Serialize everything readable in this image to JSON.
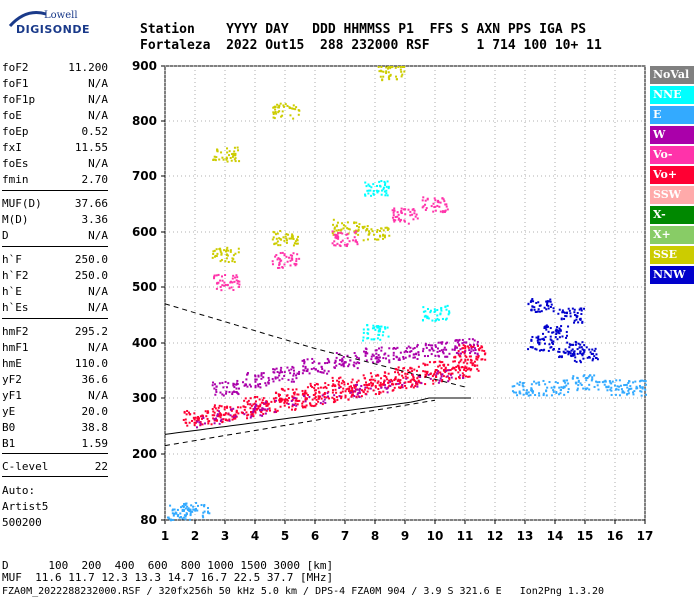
{
  "logo": {
    "top": "Lowell",
    "bottom": "DIGISONDE"
  },
  "header": {
    "line1": "Station    YYYY DAY   DDD HHMMSS P1  FFS S AXN PPS IGA PS",
    "line2": "Fortaleza  2022 Out15  288 232000 RSF      1 714 100 10+ 11"
  },
  "params": [
    {
      "k": "foF2",
      "v": "11.200"
    },
    {
      "k": "foF1",
      "v": "N/A"
    },
    {
      "k": "foF1p",
      "v": "N/A"
    },
    {
      "k": "foE",
      "v": "N/A"
    },
    {
      "k": "foEp",
      "v": "0.52"
    },
    {
      "k": "fxI",
      "v": "11.55"
    },
    {
      "k": "foEs",
      "v": "N/A"
    },
    {
      "k": "fmin",
      "v": "2.70"
    },
    {
      "k": "MUF(D)",
      "v": "37.66"
    },
    {
      "k": "M(D)",
      "v": "3.36"
    },
    {
      "k": "D",
      "v": "N/A"
    },
    {
      "k": "h`F",
      "v": "250.0"
    },
    {
      "k": "h`F2",
      "v": "250.0"
    },
    {
      "k": "h`E",
      "v": "N/A"
    },
    {
      "k": "h`Es",
      "v": "N/A"
    },
    {
      "k": "hmF2",
      "v": "295.2"
    },
    {
      "k": "hmF1",
      "v": "N/A"
    },
    {
      "k": "hmE",
      "v": "110.0"
    },
    {
      "k": "yF2",
      "v": "36.6"
    },
    {
      "k": "yF1",
      "v": "N/A"
    },
    {
      "k": "yE",
      "v": "20.0"
    },
    {
      "k": "B0",
      "v": "38.8"
    },
    {
      "k": "B1",
      "v": "1.59"
    },
    {
      "k": "C-level",
      "v": "22"
    }
  ],
  "auto": {
    "l1": "Auto:",
    "l2": "Artist5",
    "l3": "500200"
  },
  "legend": [
    {
      "label": "NoVal",
      "color": "#808080"
    },
    {
      "label": "NNE",
      "color": "#00ffff"
    },
    {
      "label": "E",
      "color": "#33aaff"
    },
    {
      "label": "W",
      "color": "#aa00aa"
    },
    {
      "label": "Vo-",
      "color": "#ff33aa"
    },
    {
      "label": "Vo+",
      "color": "#ff0033"
    },
    {
      "label": "SSW",
      "color": "#ffaaaa"
    },
    {
      "label": "X-",
      "color": "#008800"
    },
    {
      "label": "X+",
      "color": "#88cc66"
    },
    {
      "label": "SSE",
      "color": "#cccc00"
    },
    {
      "label": "NNW",
      "color": "#0000cc"
    }
  ],
  "chart_data": {
    "type": "scatter",
    "x_ticks": [
      "1",
      "2",
      "3",
      "4",
      "5",
      "6",
      "7",
      "8",
      "9",
      "10",
      "11",
      "12",
      "13",
      "14",
      "15",
      "16",
      "17"
    ],
    "y_ticks": [
      "80",
      "200",
      "300",
      "400",
      "500",
      "600",
      "700",
      "800",
      "900"
    ],
    "xlim": [
      1,
      17
    ],
    "ylim": [
      80,
      900
    ],
    "series": [
      {
        "name": "Vo+",
        "color": "#ff0033",
        "points": [
          [
            2.0,
            265
          ],
          [
            3,
            275
          ],
          [
            4,
            290
          ],
          [
            5,
            305
          ],
          [
            6,
            315
          ],
          [
            7,
            325
          ],
          [
            8,
            335
          ],
          [
            9,
            345
          ],
          [
            10,
            355
          ],
          [
            11,
            365
          ],
          [
            11.2,
            385
          ]
        ]
      },
      {
        "name": "W",
        "color": "#aa00aa",
        "points": [
          [
            3,
            320
          ],
          [
            4,
            335
          ],
          [
            5,
            345
          ],
          [
            6,
            360
          ],
          [
            7,
            370
          ],
          [
            8,
            380
          ],
          [
            9,
            385
          ],
          [
            10,
            390
          ],
          [
            11,
            395
          ]
        ]
      },
      {
        "name": "E",
        "color": "#33aaff",
        "points": [
          [
            1.5,
            95
          ],
          [
            2,
            100
          ],
          [
            13,
            320
          ],
          [
            14,
            320
          ],
          [
            15,
            330
          ],
          [
            16,
            320
          ],
          [
            16.8,
            320
          ]
        ]
      },
      {
        "name": "NNW",
        "color": "#0000cc",
        "points": [
          [
            13.5,
            400
          ],
          [
            14,
            420
          ],
          [
            14.5,
            390
          ],
          [
            15,
            380
          ],
          [
            13.5,
            470
          ],
          [
            14.5,
            450
          ]
        ]
      },
      {
        "name": "SSE",
        "color": "#cccc00",
        "points": [
          [
            3,
            560
          ],
          [
            5,
            590
          ],
          [
            7,
            610
          ],
          [
            8,
            600
          ],
          [
            3,
            740
          ],
          [
            5,
            820
          ],
          [
            8.5,
            890
          ]
        ]
      },
      {
        "name": "NNE",
        "color": "#00ffff",
        "points": [
          [
            8,
            420
          ],
          [
            10,
            455
          ],
          [
            8,
            680
          ]
        ]
      },
      {
        "name": "Vo-",
        "color": "#ff33aa",
        "points": [
          [
            3,
            510
          ],
          [
            5,
            550
          ],
          [
            7,
            590
          ],
          [
            9,
            630
          ],
          [
            10,
            650
          ]
        ]
      }
    ]
  },
  "footer": {
    "l1": "D      100  200  400  600  800 1000 1500 3000 [km]",
    "l2": "MUF  11.6 11.7 12.3 13.3 14.7 16.7 22.5 37.7 [MHz]",
    "l3": "FZA0M_2022288232000.RSF / 320fx256h 50 kHz 5.0 km / DPS-4 FZA0M 904 / 3.9 S 321.6 E   Ion2Png 1.3.20"
  }
}
